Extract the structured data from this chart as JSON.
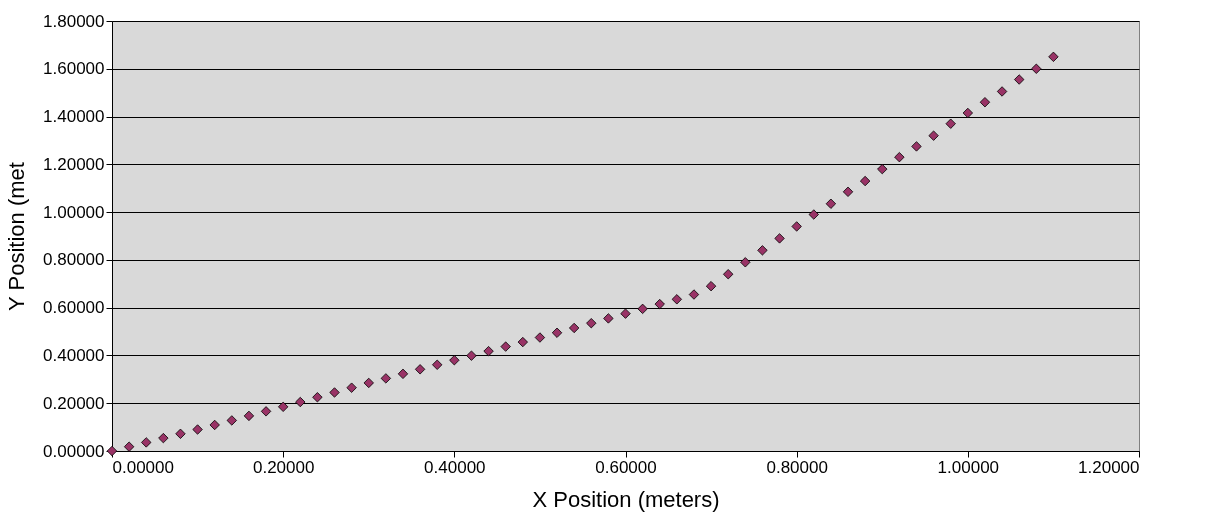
{
  "chart_data": {
    "type": "scatter",
    "xlabel": "X Position (meters)",
    "ylabel": "Y Position (met",
    "marker": "diamond",
    "grid": "y",
    "legend": false,
    "xlim": [
      0,
      1.2
    ],
    "ylim": [
      0,
      1.8
    ],
    "xticks": [
      {
        "value": 0,
        "label": "0.00000"
      },
      {
        "value": 0.2,
        "label": "0.20000"
      },
      {
        "value": 0.4,
        "label": "0.40000"
      },
      {
        "value": 0.6,
        "label": "0.60000"
      },
      {
        "value": 0.8,
        "label": "0.80000"
      },
      {
        "value": 1.0,
        "label": "1.00000"
      },
      {
        "value": 1.2,
        "label": "1.20000"
      }
    ],
    "yticks": [
      {
        "value": 0,
        "label": "0.00000"
      },
      {
        "value": 0.2,
        "label": "0.20000"
      },
      {
        "value": 0.4,
        "label": "0.40000"
      },
      {
        "value": 0.6,
        "label": "0.60000"
      },
      {
        "value": 0.8,
        "label": "0.80000"
      },
      {
        "value": 1.0,
        "label": "1.00000"
      },
      {
        "value": 1.2,
        "label": "1.20000"
      },
      {
        "value": 1.4,
        "label": "1.40000"
      },
      {
        "value": 1.6,
        "label": "1.60000"
      },
      {
        "value": 1.8,
        "label": "1.80000"
      }
    ],
    "x": [
      0,
      0.02,
      0.04,
      0.06,
      0.08,
      0.1,
      0.12,
      0.14,
      0.16,
      0.18,
      0.2,
      0.22,
      0.24,
      0.26,
      0.28,
      0.3,
      0.32,
      0.34,
      0.36,
      0.38,
      0.4,
      0.42,
      0.44,
      0.46,
      0.48,
      0.5,
      0.52,
      0.54,
      0.56,
      0.58,
      0.6,
      0.62,
      0.64,
      0.66,
      0.68,
      0.7,
      0.72,
      0.74,
      0.76,
      0.78,
      0.8,
      0.82,
      0.84,
      0.86,
      0.88,
      0.9,
      0.92,
      0.94,
      0.96,
      0.98,
      1.0,
      1.02,
      1.04,
      1.06,
      1.08,
      1.1
    ],
    "series": [
      {
        "color": "#993366",
        "values": [
          0,
          0.018,
          0.036,
          0.054,
          0.072,
          0.09,
          0.109,
          0.128,
          0.147,
          0.166,
          0.185,
          0.205,
          0.225,
          0.245,
          0.265,
          0.285,
          0.304,
          0.323,
          0.342,
          0.361,
          0.38,
          0.399,
          0.418,
          0.437,
          0.456,
          0.475,
          0.495,
          0.515,
          0.535,
          0.555,
          0.575,
          0.595,
          0.615,
          0.635,
          0.655,
          0.69,
          0.74,
          0.79,
          0.84,
          0.89,
          0.94,
          0.99,
          1.035,
          1.085,
          1.13,
          1.18,
          1.23,
          1.275,
          1.32,
          1.37,
          1.415,
          1.46,
          1.505,
          1.555,
          1.6,
          1.65
        ]
      }
    ]
  }
}
